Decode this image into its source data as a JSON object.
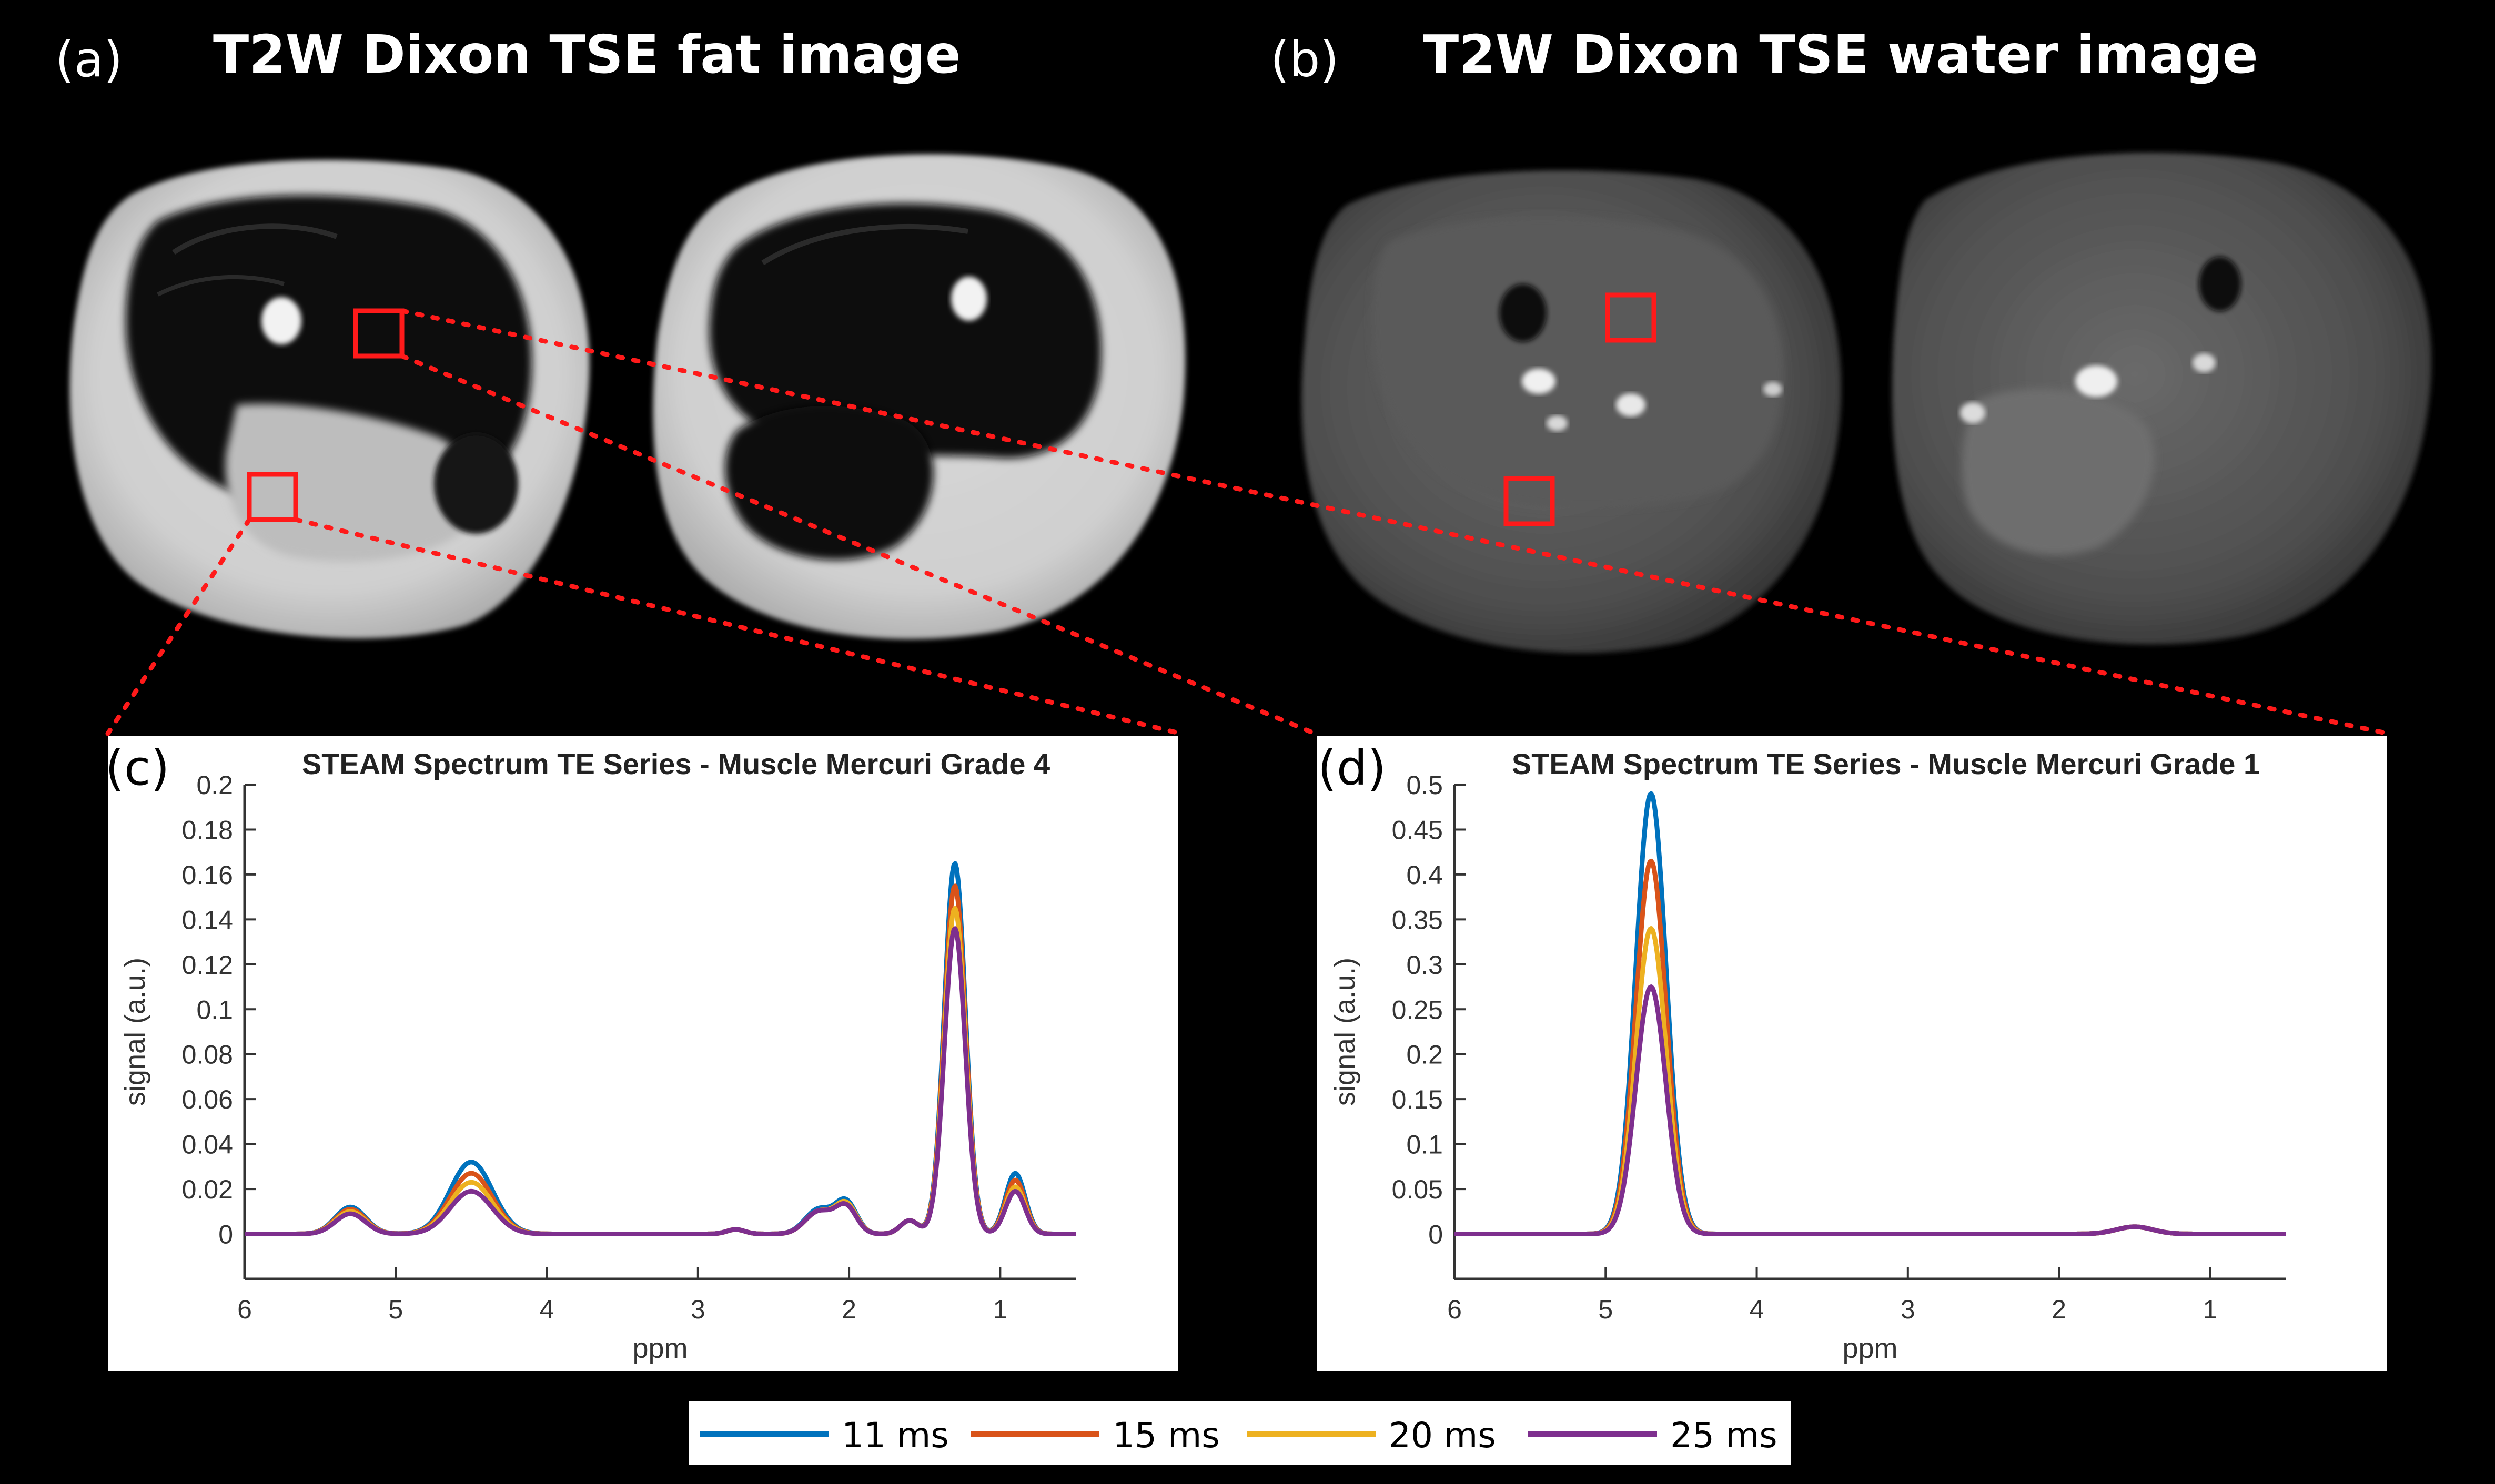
{
  "panels": {
    "a": {
      "label": "(a)",
      "title": "T2W Dixon TSE fat image"
    },
    "b": {
      "label": "(b)",
      "title": "T2W Dixon TSE water image"
    },
    "c": {
      "label": "(c)"
    },
    "d": {
      "label": "(d)"
    }
  },
  "colors": {
    "s11": "#0072bd",
    "s15": "#d95319",
    "s20": "#edb120",
    "s25": "#7e2f8e",
    "roi": "#ff1a1a",
    "axis": "#333333"
  },
  "legend": [
    "11 ms",
    "15 ms",
    "20 ms",
    "25 ms"
  ],
  "chart_data": [
    {
      "type": "line",
      "title": "STEAM Spectrum TE Series - Muscle Mercuri Grade 4",
      "xlabel": "ppm",
      "ylabel": "signal (a.u.)",
      "xlim": [
        6,
        0.5
      ],
      "x_reversed": true,
      "ylim": [
        -0.02,
        0.2
      ],
      "xticks": [
        6,
        5,
        4,
        3,
        2,
        1
      ],
      "yticks": [
        0,
        0.02,
        0.04,
        0.06,
        0.08,
        0.1,
        0.12,
        0.14,
        0.16,
        0.18,
        0.2
      ],
      "ytick_labels": [
        "0",
        "0.02",
        "0.04",
        "0.06",
        "0.08",
        "0.1",
        "0.12",
        "0.14",
        "0.16",
        "0.18",
        "0.2"
      ],
      "peaks": [
        {
          "ppm": 5.3,
          "width": 0.1,
          "amps": [
            0.012,
            0.011,
            0.01,
            0.009
          ]
        },
        {
          "ppm": 4.5,
          "width": 0.14,
          "amps": [
            0.032,
            0.027,
            0.023,
            0.019
          ]
        },
        {
          "ppm": 2.75,
          "width": 0.06,
          "amps": [
            0.002,
            0.002,
            0.002,
            0.002
          ]
        },
        {
          "ppm": 2.2,
          "width": 0.09,
          "amps": [
            0.011,
            0.01,
            0.01,
            0.01
          ]
        },
        {
          "ppm": 2.02,
          "width": 0.07,
          "amps": [
            0.014,
            0.013,
            0.013,
            0.012
          ]
        },
        {
          "ppm": 1.6,
          "width": 0.06,
          "amps": [
            0.006,
            0.006,
            0.006,
            0.006
          ]
        },
        {
          "ppm": 1.3,
          "width": 0.07,
          "amps": [
            0.165,
            0.155,
            0.145,
            0.136
          ]
        },
        {
          "ppm": 0.9,
          "width": 0.065,
          "amps": [
            0.027,
            0.024,
            0.021,
            0.019
          ]
        }
      ],
      "series": [
        {
          "name": "11 ms",
          "color": "#0072bd"
        },
        {
          "name": "15 ms",
          "color": "#d95319"
        },
        {
          "name": "20 ms",
          "color": "#edb120"
        },
        {
          "name": "25 ms",
          "color": "#7e2f8e"
        }
      ]
    },
    {
      "type": "line",
      "title": "STEAM Spectrum TE Series - Muscle Mercuri Grade 1",
      "xlabel": "ppm",
      "ylabel": "signal (a.u.)",
      "xlim": [
        6,
        0.5
      ],
      "x_reversed": true,
      "ylim": [
        -0.05,
        0.5
      ],
      "xticks": [
        6,
        5,
        4,
        3,
        2,
        1
      ],
      "yticks": [
        0,
        0.05,
        0.1,
        0.15,
        0.2,
        0.25,
        0.3,
        0.35,
        0.4,
        0.45,
        0.5
      ],
      "ytick_labels": [
        "0",
        "0.05",
        "0.1",
        "0.15",
        "0.2",
        "0.25",
        "0.3",
        "0.35",
        "0.4",
        "0.45",
        "0.5"
      ],
      "peaks": [
        {
          "ppm": 4.7,
          "width": 0.1,
          "amps": [
            0.49,
            0.415,
            0.34,
            0.275
          ]
        },
        {
          "ppm": 1.5,
          "width": 0.12,
          "amps": [
            0.008,
            0.008,
            0.008,
            0.008
          ]
        }
      ],
      "series": [
        {
          "name": "11 ms",
          "color": "#0072bd"
        },
        {
          "name": "15 ms",
          "color": "#d95319"
        },
        {
          "name": "20 ms",
          "color": "#edb120"
        },
        {
          "name": "25 ms",
          "color": "#7e2f8e"
        }
      ]
    }
  ]
}
